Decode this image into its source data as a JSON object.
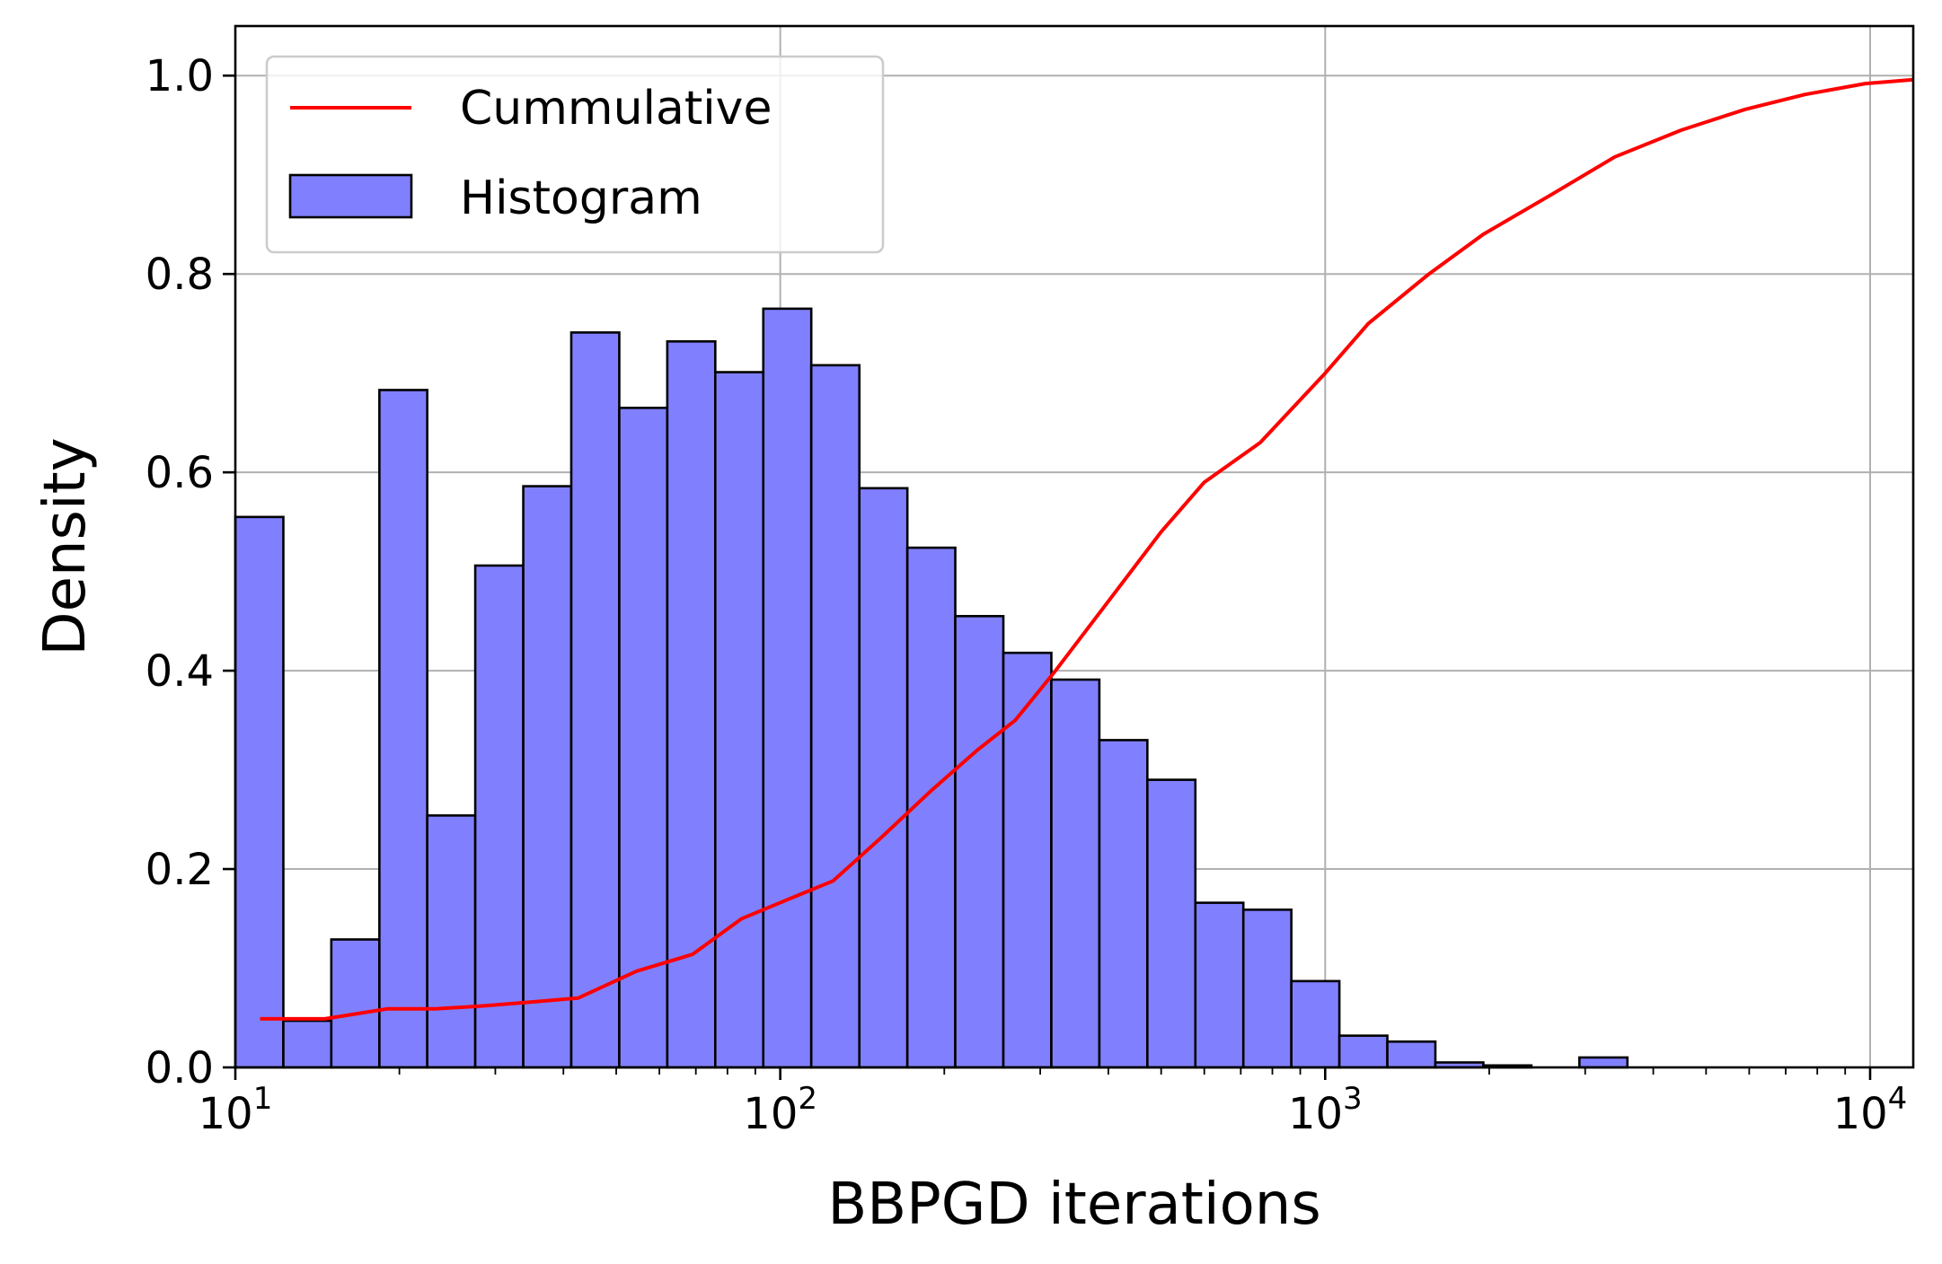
{
  "chart_data": {
    "type": "bar",
    "xlabel": "BBPGD iterations",
    "ylabel": "Density",
    "x_scale": "log",
    "xlim": [
      10,
      12000
    ],
    "ylim": [
      0,
      1.05
    ],
    "grid": true,
    "legend_placement": "top-left",
    "x_ticks": [
      {
        "value": 10,
        "base": "10",
        "exp": "1"
      },
      {
        "value": 100,
        "base": "10",
        "exp": "2"
      },
      {
        "value": 1000,
        "base": "10",
        "exp": "3"
      },
      {
        "value": 10000,
        "base": "10",
        "exp": "4"
      }
    ],
    "y_ticks": [
      {
        "value": 0.0,
        "label": "0.0"
      },
      {
        "value": 0.2,
        "label": "0.2"
      },
      {
        "value": 0.4,
        "label": "0.4"
      },
      {
        "value": 0.6,
        "label": "0.6"
      },
      {
        "value": 0.8,
        "label": "0.8"
      },
      {
        "value": 1.0,
        "label": "1.0"
      }
    ],
    "histogram": {
      "name": "Histogram",
      "color": "#8080ff",
      "edge_color": "#000000",
      "bin_edges": [
        10,
        12.25,
        15.0,
        18.38,
        22.5,
        27.56,
        33.76,
        41.35,
        50.65,
        62.04,
        75.99,
        93.08,
        114.0,
        139.7,
        171.1,
        209.5,
        256.7,
        314.4,
        385.1,
        471.7,
        577.8,
        707.7,
        866.8,
        1061.8,
        1300.5,
        1593,
        1951.3,
        2390,
        2927.7,
        3586,
        4392.8
      ],
      "values": [
        0.555,
        0.047,
        0.129,
        0.683,
        0.254,
        0.506,
        0.586,
        0.741,
        0.665,
        0.732,
        0.701,
        0.765,
        0.708,
        0.584,
        0.524,
        0.455,
        0.418,
        0.391,
        0.33,
        0.29,
        0.166,
        0.159,
        0.087,
        0.032,
        0.026,
        0.005,
        0.002,
        0.0,
        0.01,
        0.0
      ]
    },
    "cumulative": {
      "name": "Cummulative",
      "color": "#ff0000",
      "x": [
        11.1,
        12.6,
        14.6,
        19.0,
        23.3,
        28.5,
        35.0,
        42.6,
        54.5,
        69.0,
        85.0,
        104.0,
        125.0,
        152.0,
        190.0,
        230.0,
        270.0,
        320.0,
        400.0,
        500.0,
        600.0,
        760.0,
        1000.0,
        1200.0,
        1550.0,
        1950.0,
        2600.0,
        3400.0,
        4500.0,
        5900.0,
        7600.0,
        9800.0,
        12000.0
      ],
      "y": [
        0.049,
        0.049,
        0.049,
        0.059,
        0.059,
        0.062,
        0.066,
        0.07,
        0.097,
        0.114,
        0.15,
        0.17,
        0.188,
        0.23,
        0.28,
        0.32,
        0.35,
        0.4,
        0.47,
        0.54,
        0.59,
        0.63,
        0.7,
        0.75,
        0.8,
        0.84,
        0.88,
        0.918,
        0.945,
        0.966,
        0.981,
        0.992,
        0.996
      ]
    }
  }
}
